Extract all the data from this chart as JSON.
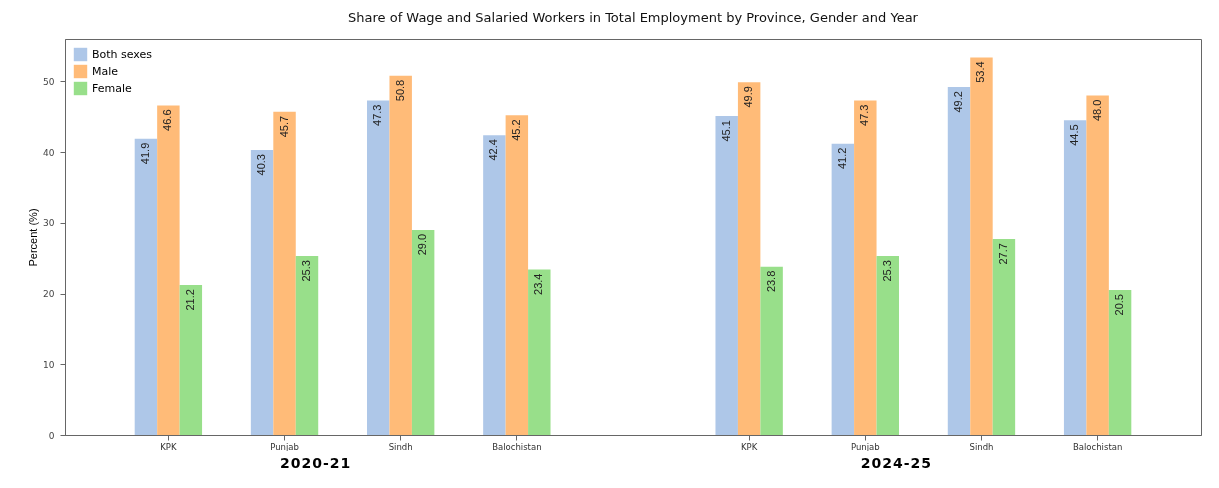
{
  "chart_data": {
    "type": "bar",
    "title": "Share of Wage and Salaried Workers in Total Employment by Province, Gender and Year",
    "ylabel": "Percent (%)",
    "categories": [
      "KPK",
      "Punjab",
      "Sindh",
      "Balochistan",
      null,
      "KPK",
      "Punjab",
      "Sindh",
      "Balochistan"
    ],
    "series": [
      {
        "name": "Both sexes",
        "color": "#aec7e8",
        "values": [
          41.9,
          40.3,
          47.3,
          42.4,
          null,
          45.1,
          41.2,
          49.2,
          44.5
        ],
        "value_labels": [
          "41.9",
          "40.3",
          "47.3",
          "42.4",
          null,
          "45.1",
          "41.2",
          "49.2",
          "44.5"
        ]
      },
      {
        "name": "Male",
        "color": "#ffbb78",
        "values": [
          46.6,
          45.7,
          50.8,
          45.2,
          null,
          49.9,
          47.3,
          53.4,
          48.0
        ],
        "value_labels": [
          "46.6",
          "45.7",
          "50.8",
          "45.2",
          null,
          "49.9",
          "47.3",
          "53.4",
          "48.0"
        ]
      },
      {
        "name": "Female",
        "color": "#98df8a",
        "values": [
          21.2,
          25.3,
          29.0,
          23.4,
          null,
          23.8,
          25.3,
          27.7,
          20.5
        ],
        "value_labels": [
          "21.2",
          "25.3",
          "29.0",
          "23.4",
          null,
          "23.8",
          "25.3",
          "27.7",
          "20.5"
        ]
      }
    ],
    "ylim": [
      0,
      56
    ],
    "yticks": [
      0,
      10,
      20,
      30,
      40,
      50
    ],
    "grid": false,
    "legend": "top left",
    "annotations": [
      "2020-21",
      "2024-25"
    ]
  }
}
